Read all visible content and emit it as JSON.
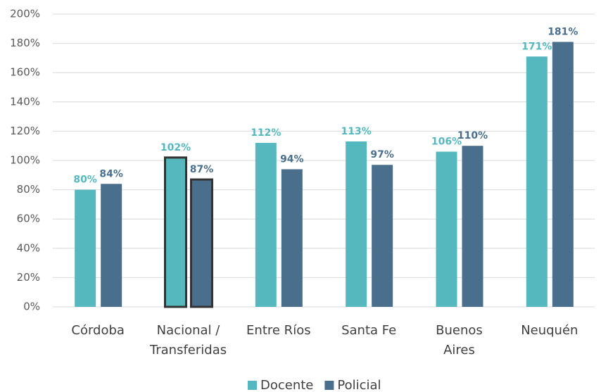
{
  "chart_data": {
    "type": "bar",
    "categories": [
      "Córdoba",
      "Nacional /\nTransferidas",
      "Entre Ríos",
      "Santa Fe",
      "Buenos\nAires",
      "Neuquén"
    ],
    "series": [
      {
        "name": "Docente",
        "color": "#56b8bf",
        "values": [
          80,
          102,
          112,
          113,
          106,
          171
        ],
        "value_labels": [
          "80%",
          "102%",
          "112%",
          "113%",
          "106%",
          "171%"
        ]
      },
      {
        "name": "Policial",
        "color": "#4a6f8c",
        "values": [
          84,
          87,
          94,
          97,
          110,
          181
        ],
        "value_labels": [
          "84%",
          "87%",
          "94%",
          "97%",
          "110%",
          "181%"
        ]
      }
    ],
    "ylim": [
      0,
      200
    ],
    "yticks": [
      {
        "value": 0,
        "label": "0%"
      },
      {
        "value": 20,
        "label": "20%"
      },
      {
        "value": 40,
        "label": "40%"
      },
      {
        "value": 60,
        "label": "60%"
      },
      {
        "value": 80,
        "label": "80%"
      },
      {
        "value": 100,
        "label": "100%"
      },
      {
        "value": 120,
        "label": "120%"
      },
      {
        "value": 140,
        "label": "140%"
      },
      {
        "value": 160,
        "label": "160%"
      },
      {
        "value": 180,
        "label": "180%"
      },
      {
        "value": 200,
        "label": "200%"
      }
    ],
    "grid": true,
    "legend": "bottom",
    "highlight": "Nacional /\nTransferidas"
  }
}
